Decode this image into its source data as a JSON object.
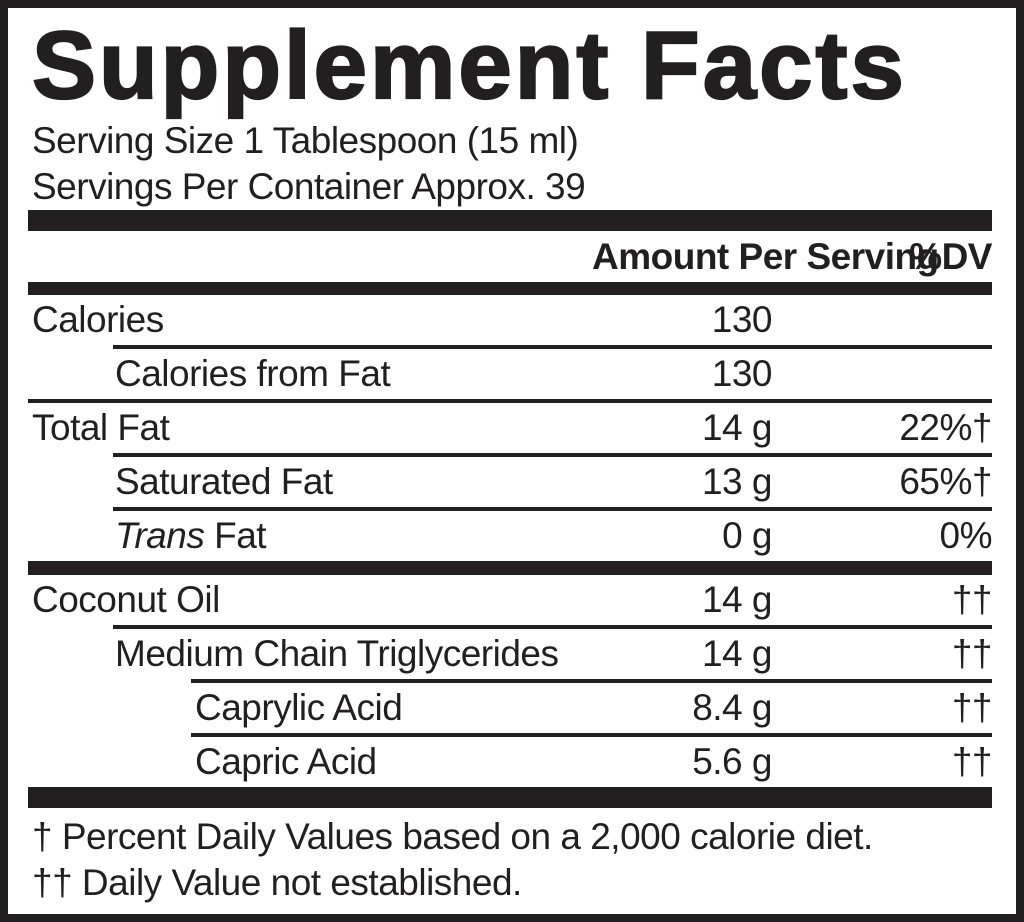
{
  "ink_color": "#221f20",
  "background_color": "#ffffff",
  "label": {
    "title": "Supplement Facts",
    "serving_size": "Serving Size 1 Tablespoon (15 ml)",
    "servings_per_container": "Servings Per Container Approx. 39",
    "columns": {
      "amount": "Amount Per Serving",
      "dv": "%DV"
    },
    "rows": [
      {
        "name": "Calories",
        "indent": 0,
        "amount": "130",
        "dv": ""
      },
      {
        "name": "Calories from Fat",
        "indent": 1,
        "amount": "130",
        "dv": ""
      },
      {
        "name": "Total Fat",
        "indent": 0,
        "amount": "14 g",
        "dv": "22%†"
      },
      {
        "name": "Saturated Fat",
        "indent": 1,
        "amount": "13 g",
        "dv": "65%†"
      },
      {
        "name_italic": "Trans",
        "name_rest": " Fat",
        "indent": 1,
        "amount": "0 g",
        "dv": "0%"
      },
      {
        "name": "Coconut Oil",
        "indent": 0,
        "amount": "14 g",
        "dv": "††"
      },
      {
        "name": "Medium Chain Triglycerides",
        "indent": 1,
        "amount": "14 g",
        "dv": "††"
      },
      {
        "name": "Caprylic Acid",
        "indent": 2,
        "amount": "8.4 g",
        "dv": "††"
      },
      {
        "name": "Capric Acid",
        "indent": 2,
        "amount": "5.6 g",
        "dv": "††"
      }
    ],
    "footnotes": [
      "† Percent Daily Values based on a 2,000 calorie diet.",
      "†† Daily Value not established."
    ]
  }
}
